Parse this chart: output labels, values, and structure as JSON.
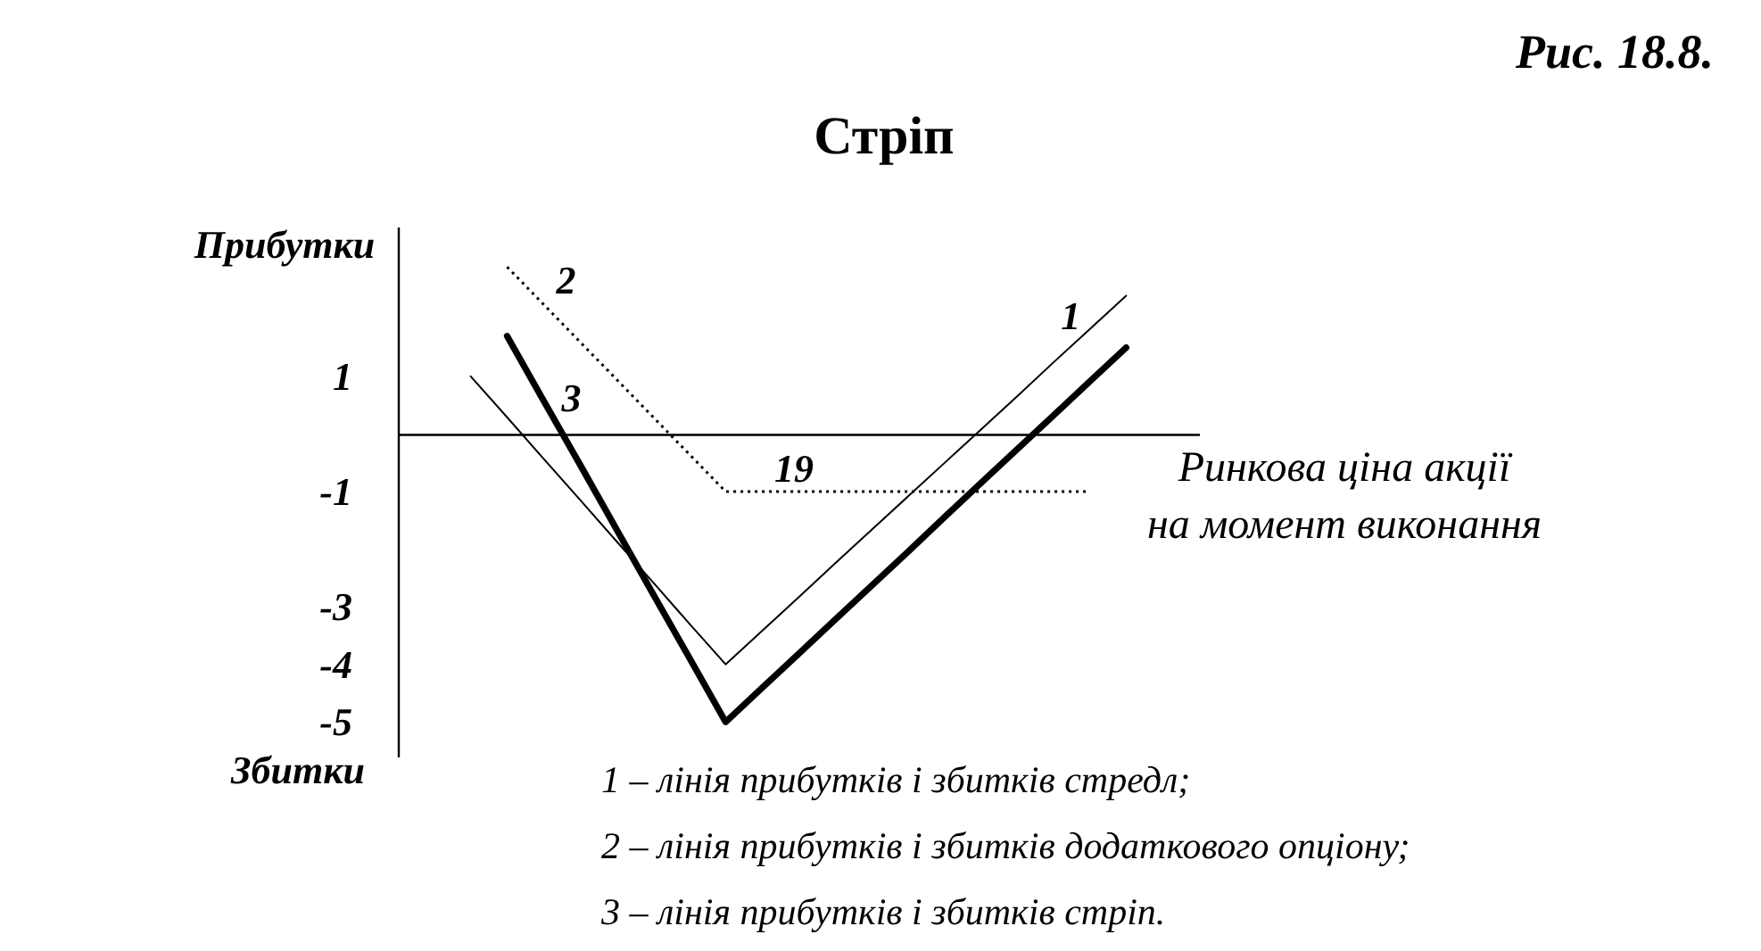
{
  "chart_data": {
    "type": "line",
    "title": "Стріп",
    "xlabel": "Ринкова ціна акції\nна момент виконання",
    "ylabel": "Прибутки",
    "ylim": [
      -5.6,
      3.6
    ],
    "yticks": [
      1,
      -1,
      -3,
      -4,
      -5
    ],
    "tick_labels": "y",
    "categories": [
      null,
      null,
      null,
      null,
      null,
      null,
      null,
      null,
      null,
      null,
      null,
      null,
      null,
      null,
      null,
      null,
      null,
      null,
      null,
      null,
      null,
      null,
      null
    ],
    "series": [
      {
        "name": "1",
        "color": "#000000",
        "line_style": "solid",
        "values": [
          null,
          null,
          1.0,
          0.29,
          -0.43,
          -1.14,
          -1.86,
          -2.57,
          -3.29,
          -4,
          -3.42,
          -2.84,
          -2.25,
          -1.67,
          -1.09,
          -0.51,
          0.07,
          0.65,
          1.24,
          1.82,
          2.4,
          null,
          null
        ]
      },
      {
        "name": "2",
        "color": "#000000",
        "line_style": "dotted",
        "values": [
          null,
          null,
          null,
          2.9,
          2.25,
          1.6,
          0.95,
          0.3,
          -0.35,
          -1,
          -1,
          -1,
          -1,
          -1,
          -1,
          -1,
          -1,
          -1,
          -1,
          -1,
          null,
          null,
          null
        ]
      },
      {
        "name": "3",
        "color": "#000000",
        "line_style": "solid",
        "values": [
          null,
          null,
          null,
          1.7,
          0.58,
          -0.53,
          -1.65,
          -2.77,
          -3.88,
          -5,
          -4.41,
          -3.82,
          -3.23,
          -2.64,
          -2.05,
          -1.45,
          -0.86,
          -0.27,
          0.32,
          0.91,
          1.5,
          null,
          null
        ]
      }
    ],
    "annotations": [
      "19",
      "Збитки",
      "1 – лінія прибутків і збитків стредл;",
      "2 – лінія прибутків і збитків додаткового опціону;",
      "3 – лінія прибутків і збитків стріп.",
      "Рис. 18.8."
    ]
  }
}
